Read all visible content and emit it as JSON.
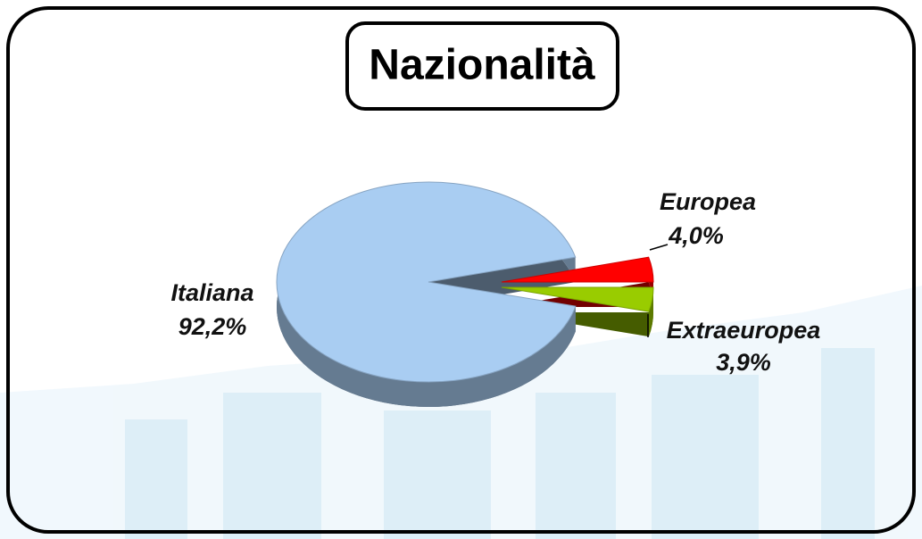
{
  "chart_data": {
    "type": "pie",
    "title": "Nazionalità",
    "categories": [
      "Italiana",
      "Europea",
      "Extraeuropea"
    ],
    "values": [
      92.2,
      4.0,
      3.9
    ],
    "value_labels": [
      "92,2%",
      "4,0%",
      "3,9%"
    ],
    "colors": [
      "#a9cdf2",
      "#ff0000",
      "#99cc00"
    ]
  }
}
